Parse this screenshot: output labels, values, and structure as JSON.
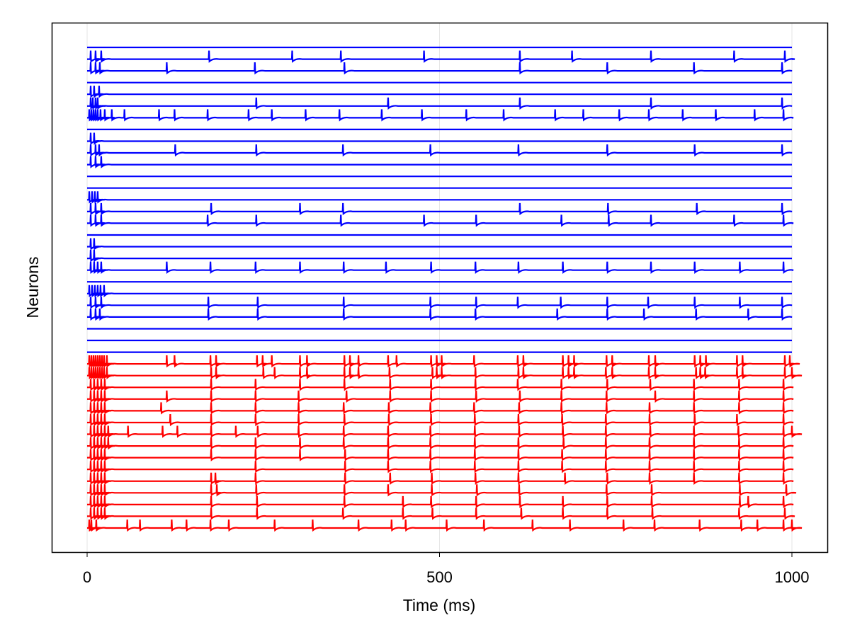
{
  "chart_data": {
    "type": "line",
    "title": "",
    "xlabel": "Time (ms)",
    "ylabel": "Neurons",
    "xlim": [
      0,
      1000
    ],
    "xticks": [
      0,
      500,
      1000
    ],
    "grid": "vertical at x ticks",
    "legend": "none",
    "colors": {
      "excitatory": "#0000ff",
      "inhibitory": "#ff0000"
    },
    "series": [
      {
        "group": "excitatory",
        "spikes": []
      },
      {
        "group": "excitatory",
        "spikes": [
          5,
          12,
          20,
          173,
          291,
          360,
          478,
          614,
          688,
          800,
          918,
          990
        ]
      },
      {
        "group": "excitatory",
        "spikes": [
          5,
          12,
          18,
          113,
          238,
          365,
          614,
          738,
          861,
          986
        ]
      },
      {
        "group": "excitatory",
        "spikes": []
      },
      {
        "group": "excitatory",
        "spikes": [
          5,
          10,
          17
        ]
      },
      {
        "group": "excitatory",
        "spikes": [
          5,
          8,
          12,
          15,
          240,
          427,
          614,
          800,
          986
        ]
      },
      {
        "group": "excitatory",
        "spikes": [
          3,
          6,
          9,
          12,
          15,
          19,
          25,
          35,
          53,
          102,
          124,
          171,
          229,
          262,
          310,
          358,
          418,
          475,
          538,
          591,
          664,
          704,
          755,
          797,
          845,
          892,
          947,
          988
        ]
      },
      {
        "group": "excitatory",
        "spikes": []
      },
      {
        "group": "excitatory",
        "spikes": [
          5,
          10
        ]
      },
      {
        "group": "excitatory",
        "spikes": [
          5,
          12,
          17,
          125,
          240,
          363,
          487,
          612,
          738,
          862,
          986
        ]
      },
      {
        "group": "excitatory",
        "spikes": [
          5,
          12,
          20
        ]
      },
      {
        "group": "excitatory",
        "spikes": []
      },
      {
        "group": "excitatory",
        "spikes": []
      },
      {
        "group": "excitatory",
        "spikes": [
          3,
          7,
          11,
          15
        ]
      },
      {
        "group": "excitatory",
        "spikes": [
          5,
          12,
          20,
          176,
          302,
          363,
          614,
          739,
          865,
          986
        ]
      },
      {
        "group": "excitatory",
        "spikes": [
          5,
          12,
          20,
          171,
          240,
          360,
          478,
          552,
          673,
          740,
          800,
          918,
          988
        ]
      },
      {
        "group": "excitatory",
        "spikes": []
      },
      {
        "group": "excitatory",
        "spikes": [
          5,
          10
        ]
      },
      {
        "group": "excitatory",
        "spikes": [
          5,
          10
        ]
      },
      {
        "group": "excitatory",
        "spikes": [
          5,
          10,
          15,
          20,
          113,
          175,
          239,
          302,
          364,
          424,
          488,
          551,
          612,
          675,
          738,
          800,
          862,
          926,
          988
        ]
      },
      {
        "group": "excitatory",
        "spikes": []
      },
      {
        "group": "excitatory",
        "spikes": [
          3,
          7,
          11,
          15,
          19,
          24
        ]
      },
      {
        "group": "excitatory",
        "spikes": [
          5,
          12,
          20,
          172,
          242,
          364,
          487,
          552,
          611,
          672,
          738,
          796,
          862,
          926,
          986
        ]
      },
      {
        "group": "excitatory",
        "spikes": [
          5,
          12,
          18,
          172,
          242,
          364,
          487,
          551,
          667,
          738,
          790,
          864,
          938,
          986
        ]
      },
      {
        "group": "excitatory",
        "spikes": []
      },
      {
        "group": "excitatory",
        "spikes": []
      },
      {
        "group": "excitatory",
        "spikes": []
      },
      {
        "group": "inhibitory",
        "spikes": [
          3,
          6,
          9,
          12,
          15,
          18,
          21,
          24,
          28,
          113,
          124,
          175,
          183,
          241,
          249,
          262,
          302,
          312,
          365,
          373,
          385,
          427,
          439,
          488,
          496,
          503,
          549,
          611,
          619,
          675,
          683,
          691,
          737,
          745,
          797,
          806,
          862,
          870,
          878,
          922,
          930,
          990,
          997
        ]
      },
      {
        "group": "inhibitory",
        "spikes": [
          3,
          6,
          9,
          12,
          15,
          18,
          21,
          24,
          28,
          176,
          183,
          250,
          266,
          302,
          312,
          365,
          373,
          385,
          429,
          490,
          496,
          503,
          551,
          612,
          619,
          675,
          683,
          691,
          736,
          745,
          797,
          806,
          864,
          870,
          877,
          922,
          930,
          990,
          1000
        ]
      },
      {
        "group": "inhibitory",
        "spikes": [
          5,
          10,
          15,
          20,
          25,
          176,
          239,
          302,
          365,
          430,
          488,
          551,
          611,
          673,
          738,
          799,
          861,
          925,
          988
        ]
      },
      {
        "group": "inhibitory",
        "spikes": [
          5,
          10,
          15,
          20,
          25,
          113,
          176,
          239,
          300,
          368,
          430,
          488,
          552,
          614,
          673,
          737,
          806,
          861,
          925,
          988
        ]
      },
      {
        "group": "inhibitory",
        "spikes": [
          5,
          10,
          15,
          20,
          25,
          105,
          176,
          239,
          300,
          364,
          428,
          487,
          549,
          613,
          673,
          737,
          798,
          861,
          925,
          988
        ]
      },
      {
        "group": "inhibitory",
        "spikes": [
          5,
          10,
          15,
          20,
          25,
          118,
          176,
          239,
          300,
          365,
          428,
          488,
          550,
          612,
          674,
          736,
          798,
          862,
          922,
          988
        ]
      },
      {
        "group": "inhibitory",
        "spikes": [
          5,
          10,
          15,
          20,
          25,
          30,
          58,
          107,
          128,
          176,
          211,
          242,
          300,
          364,
          427,
          487,
          550,
          613,
          675,
          736,
          799,
          861,
          924,
          988,
          1000
        ]
      },
      {
        "group": "inhibitory",
        "spikes": [
          5,
          10,
          15,
          20,
          25,
          30,
          176,
          239,
          302,
          364,
          427,
          487,
          550,
          612,
          676,
          736,
          798,
          861,
          925,
          988
        ]
      },
      {
        "group": "inhibitory",
        "spikes": [
          5,
          10,
          15,
          20,
          25,
          176,
          239,
          302,
          366,
          427,
          487,
          550,
          612,
          674,
          736,
          798,
          861,
          925,
          988
        ]
      },
      {
        "group": "inhibitory",
        "spikes": [
          5,
          10,
          15,
          20,
          25,
          239,
          366,
          427,
          487,
          550,
          612,
          674,
          736,
          798,
          861,
          925,
          988
        ]
      },
      {
        "group": "inhibitory",
        "spikes": [
          5,
          10,
          15,
          20,
          25,
          176,
          182,
          239,
          366,
          430,
          489,
          551,
          612,
          678,
          738,
          798,
          861,
          925,
          988
        ]
      },
      {
        "group": "inhibitory",
        "spikes": [
          5,
          10,
          15,
          20,
          25,
          176,
          184,
          240,
          365,
          427,
          489,
          553,
          613,
          737,
          801,
          926,
          992
        ]
      },
      {
        "group": "inhibitory",
        "spikes": [
          5,
          10,
          15,
          20,
          25,
          176,
          241,
          365,
          448,
          488,
          552,
          614,
          675,
          738,
          801,
          926,
          938,
          988
        ]
      },
      {
        "group": "inhibitory",
        "spikes": [
          5,
          10,
          15,
          20,
          25,
          176,
          241,
          363,
          448,
          490,
          552,
          616,
          675,
          738,
          802,
          925,
          990
        ]
      },
      {
        "group": "inhibitory",
        "spikes": [
          3,
          6,
          13,
          57,
          75,
          120,
          141,
          175,
          201,
          266,
          320,
          385,
          432,
          452,
          510,
          563,
          632,
          685,
          761,
          805,
          869,
          928,
          951,
          988,
          1000
        ]
      }
    ]
  }
}
